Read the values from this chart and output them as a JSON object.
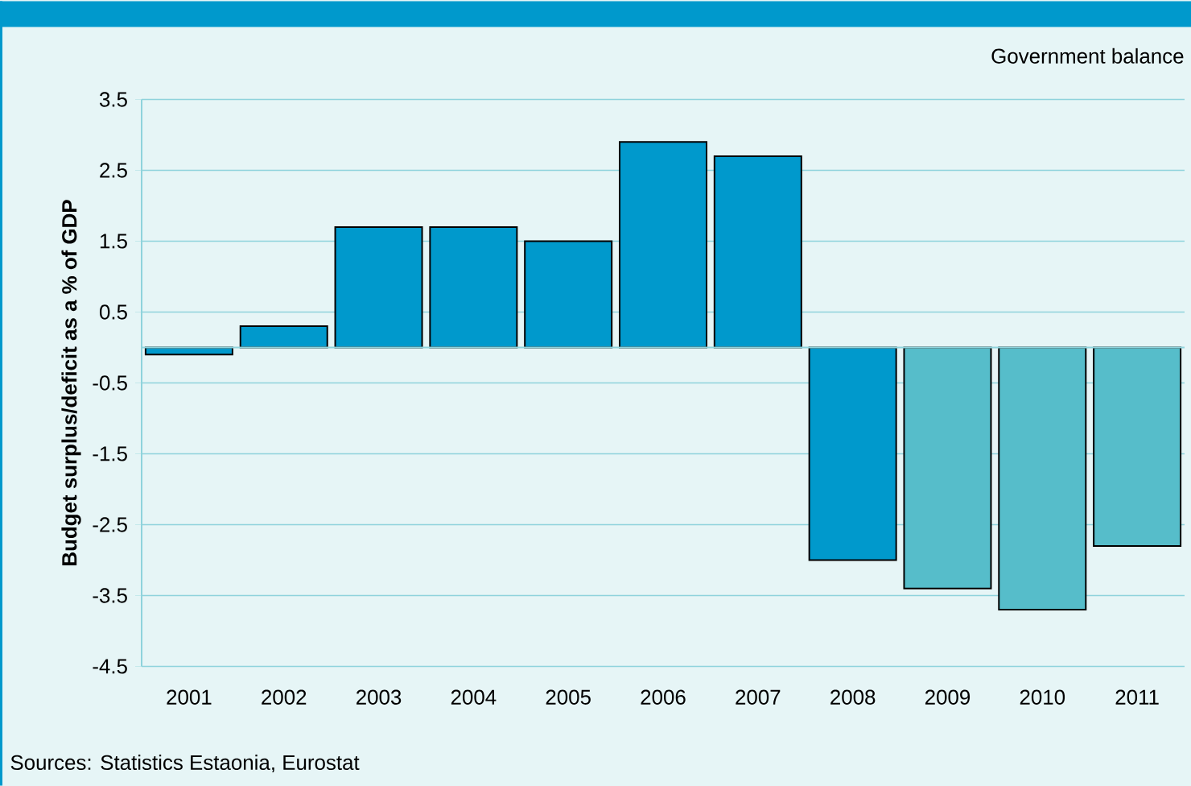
{
  "chart_data": {
    "type": "bar",
    "title": "Government balance",
    "ylabel": "Budget surplus/deficit as a % of GDP",
    "categories": [
      "2001",
      "2002",
      "2003",
      "2004",
      "2005",
      "2006",
      "2007",
      "2008",
      "2009",
      "2010",
      "2011"
    ],
    "values": [
      -0.1,
      0.3,
      1.7,
      1.7,
      1.5,
      2.9,
      2.7,
      -3.0,
      -3.4,
      -3.7,
      -2.8
    ],
    "colors": [
      "#0099cc",
      "#0099cc",
      "#0099cc",
      "#0099cc",
      "#0099cc",
      "#0099cc",
      "#0099cc",
      "#0099cc",
      "#56bdca",
      "#56bdca",
      "#56bdca"
    ],
    "ylim": [
      -4.5,
      3.5
    ],
    "yticks": [
      -4.5,
      -3.5,
      -2.5,
      -1.5,
      -0.5,
      0.5,
      1.5,
      2.5,
      3.5
    ],
    "grid": "y",
    "ref_lines": [
      {
        "axis": "y",
        "value": 0,
        "color": "#8fd3dc"
      }
    ],
    "annotations": [
      "Sources: Statistics Estaonia, Eurostat"
    ]
  }
}
